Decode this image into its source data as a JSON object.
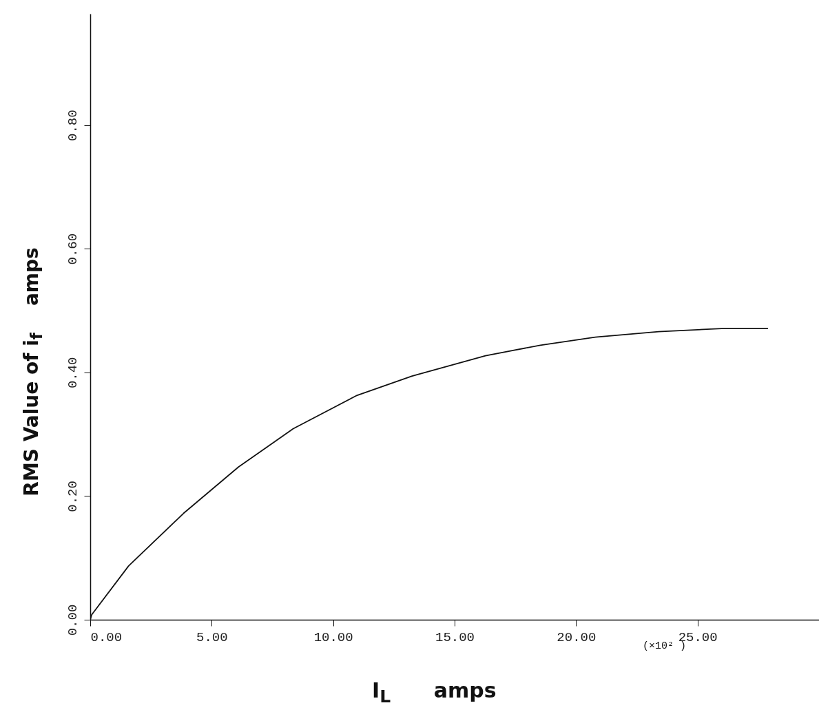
{
  "chart_data": {
    "type": "line",
    "xlabel": "I$_{L}$      amps",
    "ylabel": "RMS Value of i$_{f}$    amps",
    "annotations": [
      "(×10² )"
    ],
    "x": [
      0,
      0.06,
      1.58,
      3.84,
      6.1,
      8.36,
      10.99,
      13.25,
      16.27,
      18.53,
      20.79,
      23.4,
      26.0,
      27.9
    ],
    "series": [
      {
        "color": "#111111",
        "values": [
          0,
          0.008,
          0.087,
          0.172,
          0.247,
          0.309,
          0.363,
          0.394,
          0.427,
          0.444,
          0.457,
          0.466,
          0.471,
          0.471
        ]
      }
    ],
    "xlim": [
      0,
      30
    ],
    "ylim": [
      0,
      0.98
    ],
    "xticks": [
      {
        "value": 0,
        "label": "0.00"
      },
      {
        "value": 5,
        "label": "5.00"
      },
      {
        "value": 10,
        "label": "10.00"
      },
      {
        "value": 15,
        "label": "15.00"
      },
      {
        "value": 20,
        "label": "20.00"
      },
      {
        "value": 25,
        "label": "25.00"
      }
    ],
    "yticks": [
      {
        "value": 0,
        "label": "0.00"
      },
      {
        "value": 0.2,
        "label": "0.20"
      },
      {
        "value": 0.4,
        "label": "0.40"
      },
      {
        "value": 0.6,
        "label": "0.60"
      },
      {
        "value": 0.8,
        "label": "0.80"
      }
    ],
    "marker": "none",
    "line_style": "solid"
  }
}
